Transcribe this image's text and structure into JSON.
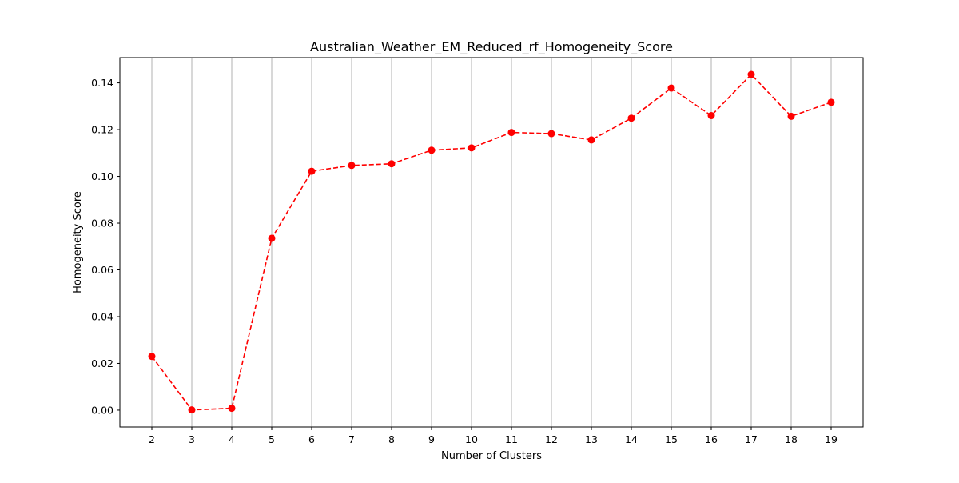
{
  "chart_data": {
    "type": "line",
    "title": "Australian_Weather_EM_Reduced_rf_Homogeneity_Score",
    "xlabel": "Number of Clusters",
    "ylabel": "Homogeneity Score",
    "x": [
      2,
      3,
      4,
      5,
      6,
      7,
      8,
      9,
      10,
      11,
      12,
      13,
      14,
      15,
      16,
      17,
      18,
      19
    ],
    "series": [
      {
        "values": [
          0.023,
          0.0001,
          0.0008,
          0.0735,
          0.1022,
          0.1047,
          0.1054,
          0.1112,
          0.1122,
          0.1188,
          0.1183,
          0.1156,
          0.1249,
          0.1378,
          0.126,
          0.1436,
          0.1257,
          0.1317
        ],
        "color": "#ff0000",
        "line_style": "dashed",
        "marker": "circle"
      }
    ],
    "xlim": [
      1.2,
      19.8
    ],
    "ylim": [
      -0.0072,
      0.1508
    ],
    "x_ticks": [
      2,
      3,
      4,
      5,
      6,
      7,
      8,
      9,
      10,
      11,
      12,
      13,
      14,
      15,
      16,
      17,
      18,
      19
    ],
    "y_ticks": [
      0.0,
      0.02,
      0.04,
      0.06,
      0.08,
      0.1,
      0.12,
      0.14
    ],
    "y_tick_labels": [
      "0.00",
      "0.02",
      "0.04",
      "0.06",
      "0.08",
      "0.10",
      "0.12",
      "0.14"
    ],
    "grid": "vertical-only",
    "grid_color": "#b0b0b0",
    "legend": "none"
  }
}
